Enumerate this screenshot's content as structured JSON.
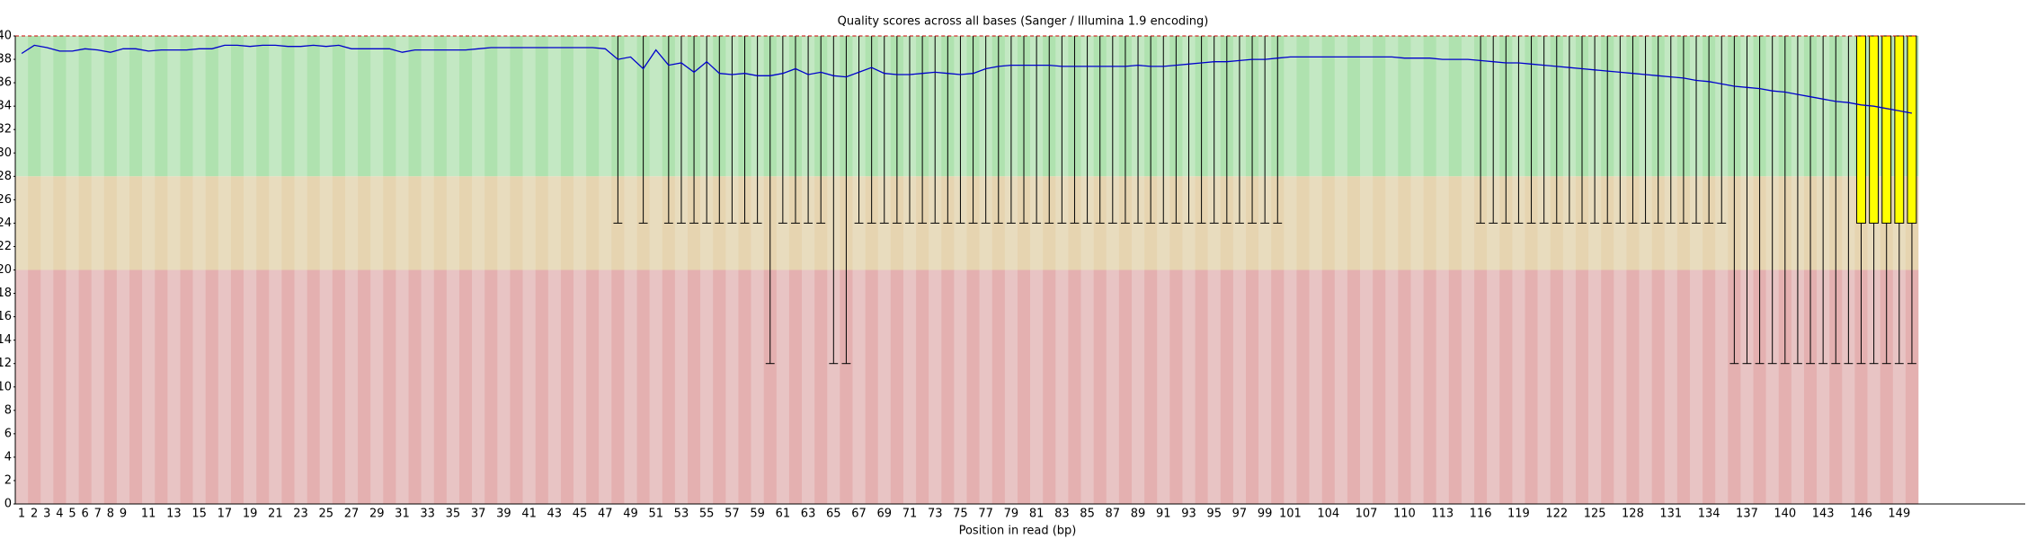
{
  "chart_data": {
    "type": "box",
    "title": "Quality scores across all bases (Sanger / Illumina 1.9 encoding)",
    "x_label": "Position in read (bp)",
    "categories": [
      1,
      2,
      3,
      4,
      5,
      6,
      7,
      8,
      9,
      null,
      11,
      null,
      13,
      null,
      15,
      null,
      17,
      null,
      19,
      null,
      21,
      null,
      23,
      null,
      25,
      null,
      27,
      null,
      29,
      null,
      31,
      null,
      33,
      null,
      35,
      null,
      37,
      null,
      39,
      null,
      41,
      null,
      43,
      null,
      45,
      null,
      47,
      null,
      49,
      null,
      51,
      null,
      53,
      null,
      55,
      null,
      57,
      null,
      59,
      null,
      61,
      null,
      63,
      null,
      65,
      null,
      67,
      null,
      69,
      null,
      71,
      null,
      73,
      null,
      75,
      null,
      77,
      null,
      79,
      null,
      81,
      null,
      83,
      null,
      85,
      null,
      87,
      null,
      89,
      null,
      91,
      null,
      93,
      null,
      95,
      null,
      97,
      null,
      99,
      null,
      101,
      null,
      null,
      104,
      null,
      null,
      107,
      null,
      null,
      110,
      null,
      null,
      113,
      null,
      null,
      116,
      null,
      null,
      119,
      null,
      null,
      122,
      null,
      null,
      125,
      null,
      null,
      128,
      null,
      null,
      131,
      null,
      null,
      134,
      null,
      null,
      137,
      null,
      null,
      140,
      null,
      null,
      143,
      null,
      null,
      146,
      null,
      null,
      149,
      null
    ],
    "mean": [
      38.5,
      39.2,
      39.0,
      38.7,
      38.7,
      38.9,
      38.8,
      38.6,
      38.9,
      38.9,
      38.7,
      38.8,
      38.8,
      38.8,
      38.9,
      38.9,
      39.2,
      39.2,
      39.1,
      39.2,
      39.2,
      39.1,
      39.1,
      39.2,
      39.1,
      39.2,
      38.9,
      38.9,
      38.9,
      38.9,
      38.6,
      38.8,
      38.8,
      38.8,
      38.8,
      38.8,
      38.9,
      39.0,
      39.0,
      39.0,
      39.0,
      39.0,
      39.0,
      39.0,
      39.0,
      39.0,
      38.9,
      38.0,
      38.2,
      37.2,
      38.8,
      37.5,
      37.7,
      36.9,
      37.8,
      36.8,
      36.7,
      36.8,
      36.6,
      36.6,
      36.8,
      37.2,
      36.7,
      36.9,
      36.6,
      36.5,
      36.9,
      37.3,
      36.8,
      36.7,
      36.7,
      36.8,
      36.9,
      36.8,
      36.7,
      36.8,
      37.2,
      37.4,
      37.5,
      37.5,
      37.5,
      37.5,
      37.4,
      37.4,
      37.4,
      37.4,
      37.4,
      37.4,
      37.5,
      37.4,
      37.4,
      37.5,
      37.6,
      37.7,
      37.8,
      37.8,
      37.9,
      38.0,
      38.0,
      38.1,
      38.2,
      38.2,
      38.2,
      38.2,
      38.2,
      38.2,
      38.2,
      38.2,
      38.2,
      38.1,
      38.1,
      38.1,
      38.0,
      38.0,
      38.0,
      37.9,
      37.8,
      37.7,
      37.7,
      37.6,
      37.5,
      37.4,
      37.3,
      37.2,
      37.1,
      37.0,
      36.9,
      36.8,
      36.7,
      36.6,
      36.5,
      36.4,
      36.2,
      36.1,
      35.9,
      35.7,
      35.6,
      35.5,
      35.3,
      35.2,
      35.0,
      34.8,
      34.6,
      34.4,
      34.3,
      34.1,
      34.0,
      33.8,
      33.6,
      33.4
    ],
    "median": [
      40,
      40,
      40,
      40,
      40,
      40,
      40,
      40,
      40,
      40,
      40,
      40,
      40,
      40,
      40,
      40,
      40,
      40,
      40,
      40,
      40,
      40,
      40,
      40,
      40,
      40,
      40,
      40,
      40,
      40,
      40,
      40,
      40,
      40,
      40,
      40,
      40,
      40,
      40,
      40,
      40,
      40,
      40,
      40,
      40,
      40,
      40,
      40,
      40,
      40,
      40,
      40,
      40,
      40,
      40,
      40,
      40,
      40,
      40,
      40,
      40,
      40,
      40,
      40,
      40,
      40,
      40,
      40,
      40,
      40,
      40,
      40,
      40,
      40,
      40,
      40,
      40,
      40,
      40,
      40,
      40,
      40,
      40,
      40,
      40,
      40,
      40,
      40,
      40,
      40,
      40,
      40,
      40,
      40,
      40,
      40,
      40,
      40,
      40,
      40,
      40,
      40,
      40,
      40,
      40,
      40,
      40,
      40,
      40,
      40,
      40,
      40,
      40,
      40,
      40,
      40,
      40,
      40,
      40,
      40,
      40,
      40,
      40,
      40,
      40,
      40,
      40,
      40,
      40,
      40,
      40,
      40,
      40,
      40,
      40,
      40,
      40,
      40,
      40,
      40,
      40,
      40,
      40,
      40,
      40,
      40,
      40,
      40,
      40,
      40
    ],
    "upper_quartile": [
      40,
      40,
      40,
      40,
      40,
      40,
      40,
      40,
      40,
      40,
      40,
      40,
      40,
      40,
      40,
      40,
      40,
      40,
      40,
      40,
      40,
      40,
      40,
      40,
      40,
      40,
      40,
      40,
      40,
      40,
      40,
      40,
      40,
      40,
      40,
      40,
      40,
      40,
      40,
      40,
      40,
      40,
      40,
      40,
      40,
      40,
      40,
      40,
      40,
      40,
      40,
      40,
      40,
      40,
      40,
      40,
      40,
      40,
      40,
      40,
      40,
      40,
      40,
      40,
      40,
      40,
      40,
      40,
      40,
      40,
      40,
      40,
      40,
      40,
      40,
      40,
      40,
      40,
      40,
      40,
      40,
      40,
      40,
      40,
      40,
      40,
      40,
      40,
      40,
      40,
      40,
      40,
      40,
      40,
      40,
      40,
      40,
      40,
      40,
      40,
      40,
      40,
      40,
      40,
      40,
      40,
      40,
      40,
      40,
      40,
      40,
      40,
      40,
      40,
      40,
      40,
      40,
      40,
      40,
      40,
      40,
      40,
      40,
      40,
      40,
      40,
      40,
      40,
      40,
      40,
      40,
      40,
      40,
      40,
      40,
      40,
      40,
      40,
      40,
      40,
      40,
      40,
      40,
      40,
      40,
      40,
      40,
      40,
      40,
      40
    ],
    "lower_quartile": [
      40,
      40,
      40,
      40,
      40,
      40,
      40,
      40,
      40,
      40,
      40,
      40,
      40,
      40,
      40,
      40,
      40,
      40,
      40,
      40,
      40,
      40,
      40,
      40,
      40,
      40,
      40,
      40,
      40,
      40,
      40,
      40,
      40,
      40,
      40,
      40,
      40,
      40,
      40,
      40,
      40,
      40,
      40,
      40,
      40,
      40,
      40,
      40,
      40,
      40,
      40,
      40,
      40,
      40,
      40,
      40,
      40,
      40,
      40,
      40,
      40,
      40,
      40,
      40,
      40,
      40,
      40,
      40,
      40,
      40,
      40,
      40,
      40,
      40,
      40,
      40,
      40,
      40,
      40,
      40,
      40,
      40,
      40,
      40,
      40,
      40,
      40,
      40,
      40,
      40,
      40,
      40,
      40,
      40,
      40,
      40,
      40,
      40,
      40,
      40,
      40,
      40,
      40,
      40,
      40,
      40,
      40,
      40,
      40,
      40,
      40,
      40,
      40,
      40,
      40,
      40,
      40,
      40,
      40,
      40,
      40,
      40,
      40,
      40,
      40,
      40,
      40,
      40,
      40,
      40,
      40,
      40,
      40,
      40,
      40,
      40,
      40,
      40,
      40,
      40,
      40,
      40,
      40,
      40,
      40,
      24,
      24,
      24,
      24,
      24
    ],
    "percentile_10": [
      40,
      40,
      40,
      40,
      40,
      40,
      40,
      40,
      40,
      40,
      40,
      40,
      40,
      40,
      40,
      40,
      40,
      40,
      40,
      40,
      40,
      40,
      40,
      40,
      40,
      40,
      40,
      40,
      40,
      40,
      40,
      40,
      40,
      40,
      40,
      40,
      40,
      40,
      40,
      40,
      40,
      40,
      40,
      40,
      40,
      40,
      40,
      24,
      40,
      24,
      40,
      24,
      24,
      24,
      24,
      24,
      24,
      24,
      24,
      12,
      24,
      24,
      24,
      24,
      12,
      12,
      24,
      24,
      24,
      24,
      24,
      24,
      24,
      24,
      24,
      24,
      24,
      24,
      24,
      24,
      24,
      24,
      24,
      24,
      24,
      24,
      24,
      24,
      24,
      24,
      24,
      24,
      24,
      24,
      24,
      24,
      24,
      24,
      24,
      24,
      40,
      40,
      40,
      40,
      40,
      40,
      40,
      40,
      40,
      40,
      40,
      40,
      40,
      40,
      40,
      24,
      24,
      24,
      24,
      24,
      24,
      24,
      24,
      24,
      24,
      24,
      24,
      24,
      24,
      24,
      24,
      24,
      24,
      24,
      24,
      12,
      12,
      12,
      12,
      12,
      12,
      12,
      12,
      12,
      12,
      12,
      12,
      12,
      12,
      12
    ],
    "mean_color": "#0000cc",
    "median_color": "#cc0000",
    "box_color": "#ffff00",
    "bands": [
      {
        "from": 28,
        "to": 40,
        "colors": [
          "#c3e8c3",
          "#afe2af"
        ]
      },
      {
        "from": 20,
        "to": 28,
        "colors": [
          "#e8dcbe",
          "#e6d4b0"
        ]
      },
      {
        "from": 0,
        "to": 20,
        "colors": [
          "#e8c4c4",
          "#e4b0b0"
        ]
      }
    ],
    "ylim": [
      0,
      40
    ],
    "yticks": [
      0,
      2,
      4,
      6,
      8,
      10,
      12,
      14,
      16,
      18,
      20,
      22,
      24,
      26,
      28,
      30,
      32,
      34,
      36,
      38,
      40
    ]
  }
}
